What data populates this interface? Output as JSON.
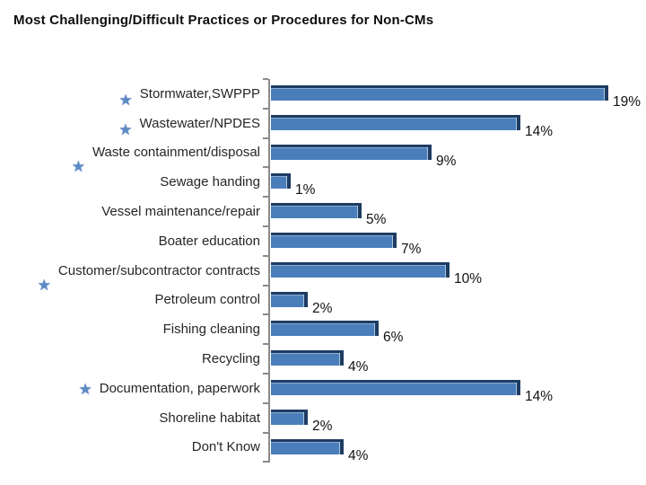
{
  "title": "Most Challenging/Difficult Practices or Procedures for Non-CMs",
  "chart_data": {
    "type": "bar",
    "orientation": "horizontal",
    "title": "Most Challenging/Difficult Practices or Procedures for Non-CMs",
    "unit": "%",
    "categories": [
      "Stormwater,SWPPP",
      "Wastewater/NPDES",
      "Waste containment/disposal",
      "Sewage handing",
      "Vessel maintenance/repair",
      "Boater education",
      "Customer/subcontractor contracts",
      "Petroleum control",
      "Fishing cleaning",
      "Recycling",
      "Documentation, paperwork",
      "Shoreline habitat",
      "Don't Know"
    ],
    "values": [
      19,
      14,
      9,
      1,
      5,
      7,
      10,
      2,
      6,
      4,
      14,
      2,
      4
    ],
    "value_labels": [
      "19%",
      "14%",
      "9%",
      "1%",
      "5%",
      "7%",
      "10%",
      "2%",
      "6%",
      "4%",
      "14%",
      "2%",
      "4%"
    ],
    "starred_categories": [
      "Stormwater,SWPPP",
      "Wastewater/NPDES",
      "Waste containment/disposal",
      "Customer/subcontractor contracts",
      "Documentation, paperwork"
    ],
    "star_placement": [
      "low",
      "low",
      "corner",
      "none",
      "none",
      "none",
      "corner",
      "none",
      "none",
      "none",
      "inline",
      "none",
      "none"
    ],
    "star_glyph": "★",
    "xlim": [
      0,
      21
    ],
    "grid": false,
    "legend": "none",
    "data_labels": "outside-end, below bar",
    "colors": {
      "bar_fill": "#4a7ebb",
      "bar_edge": "#1e3c62",
      "axis": "#8a8a8a",
      "star": "#5d8ac4",
      "label_text": "#262626",
      "title_text": "#0d0d0d",
      "background": "#ffffff"
    }
  }
}
